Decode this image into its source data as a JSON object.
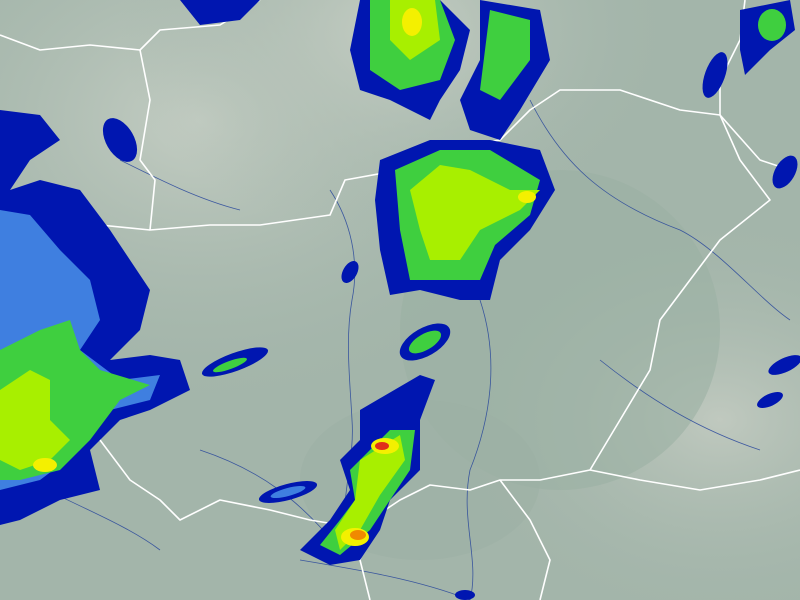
{
  "map": {
    "kind": "precipitation-radar",
    "colors": {
      "background": "#a3b5aa",
      "terrain_light": "#c2ccc2",
      "lowland": "#9fb3a6",
      "border": "#ffffff",
      "river": "#1f3f9a",
      "precip_levels": [
        "#0016b0",
        "#3f7fe0",
        "#3fcf3f",
        "#a8ef00",
        "#f4f000",
        "#f08a00",
        "#e0301a"
      ]
    }
  }
}
